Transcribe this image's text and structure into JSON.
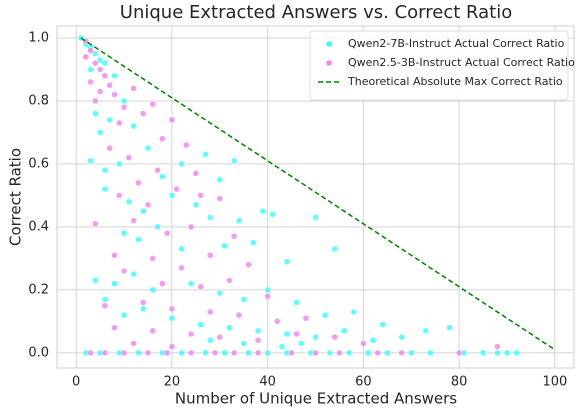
{
  "chart_data": {
    "type": "scatter",
    "title": "Unique Extracted Answers vs. Correct Ratio",
    "xlabel": "Number of Unique Extracted Answers",
    "ylabel": "Correct Ratio",
    "xlim": [
      -4,
      104
    ],
    "ylim": [
      -0.048,
      1.038
    ],
    "xticks": [
      0,
      20,
      40,
      60,
      80,
      100
    ],
    "yticks": [
      {
        "value": 0,
        "label": "0.0"
      },
      0.2,
      0.4,
      0.6,
      0.8,
      {
        "value": 1,
        "label": "1.0"
      }
    ],
    "grid": true,
    "legend": "upper right",
    "series": [
      {
        "name": "Qwen2-7B-Instruct Actual Correct Ratio",
        "color": "#33ffff",
        "type": "scatter",
        "x": [
          1,
          2,
          3,
          4,
          5,
          3,
          6,
          8,
          4,
          5,
          7,
          10,
          12,
          3,
          6,
          9,
          15,
          18,
          22,
          33,
          27,
          30,
          6,
          11,
          14,
          20,
          25,
          28,
          34,
          39,
          41,
          50,
          10,
          13,
          17,
          22,
          31,
          37,
          44,
          54,
          4,
          8,
          12,
          16,
          24,
          30,
          35,
          40,
          46,
          52,
          58,
          64,
          6,
          10,
          14,
          20,
          26,
          32,
          38,
          44,
          50,
          56,
          62,
          68,
          73,
          78,
          2,
          5,
          9,
          13,
          18,
          22,
          27,
          31,
          36,
          40,
          44,
          49,
          53,
          57,
          61,
          65,
          70,
          74,
          81,
          85,
          88,
          90,
          92,
          43,
          47,
          35,
          28
        ],
        "values": [
          1.0,
          0.98,
          0.97,
          0.95,
          0.93,
          0.9,
          0.92,
          0.88,
          0.76,
          0.7,
          0.74,
          0.8,
          0.72,
          0.61,
          0.58,
          0.6,
          0.65,
          0.56,
          0.6,
          0.61,
          0.63,
          0.55,
          0.52,
          0.48,
          0.45,
          0.5,
          0.47,
          0.43,
          0.42,
          0.45,
          0.44,
          0.43,
          0.38,
          0.36,
          0.4,
          0.33,
          0.34,
          0.35,
          0.29,
          0.33,
          0.23,
          0.22,
          0.25,
          0.2,
          0.22,
          0.19,
          0.17,
          0.2,
          0.16,
          0.12,
          0.13,
          0.09,
          0.17,
          0.12,
          0.14,
          0.11,
          0.09,
          0.08,
          0.07,
          0.06,
          0.05,
          0.07,
          0.04,
          0.05,
          0.07,
          0.08,
          0,
          0,
          0,
          0,
          0,
          0,
          0,
          0,
          0,
          0,
          0,
          0,
          0,
          0,
          0,
          0,
          0,
          0,
          0,
          0,
          0,
          0,
          0,
          0.02,
          0.03,
          0.03,
          0.04
        ]
      },
      {
        "name": "Qwen2.5-3B-Instruct Actual Correct Ratio",
        "color": "#ee82ee",
        "type": "scatter",
        "x": [
          2,
          3,
          2,
          4,
          5,
          6,
          3,
          7,
          5,
          8,
          4,
          10,
          12,
          14,
          9,
          16,
          20,
          18,
          7,
          11,
          23,
          17,
          25,
          13,
          21,
          9,
          15,
          26,
          30,
          4,
          12,
          19,
          24,
          33,
          8,
          16,
          22,
          28,
          36,
          10,
          18,
          26,
          32,
          40,
          6,
          14,
          20,
          28,
          34,
          42,
          48,
          8,
          16,
          24,
          30,
          38,
          46,
          54,
          60,
          12,
          20,
          3,
          6,
          10,
          15,
          19,
          24,
          29,
          33,
          38,
          45,
          50,
          55,
          63,
          68,
          88,
          80
        ],
        "values": [
          0.99,
          0.96,
          0.94,
          0.92,
          0.9,
          0.88,
          0.86,
          0.85,
          0.83,
          0.82,
          0.8,
          0.78,
          0.84,
          0.76,
          0.73,
          0.79,
          0.74,
          0.68,
          0.65,
          0.62,
          0.66,
          0.58,
          0.57,
          0.54,
          0.52,
          0.5,
          0.47,
          0.5,
          0.49,
          0.41,
          0.42,
          0.38,
          0.4,
          0.37,
          0.31,
          0.3,
          0.27,
          0.31,
          0.28,
          0.26,
          0.22,
          0.21,
          0.23,
          0.18,
          0.15,
          0.16,
          0.14,
          0.13,
          0.12,
          0.1,
          0.11,
          0.08,
          0.07,
          0.06,
          0.05,
          0.04,
          0.06,
          0.05,
          0.03,
          0.03,
          0.02,
          0,
          0,
          0,
          0,
          0,
          0,
          0,
          0,
          0,
          0,
          0,
          0,
          0,
          0,
          0.02,
          0
        ]
      },
      {
        "name": "Theoretical Absolute Max Correct Ratio",
        "color": "#008000",
        "type": "line",
        "x": [
          1,
          100
        ],
        "values": [
          1.0,
          0.01
        ]
      }
    ]
  }
}
